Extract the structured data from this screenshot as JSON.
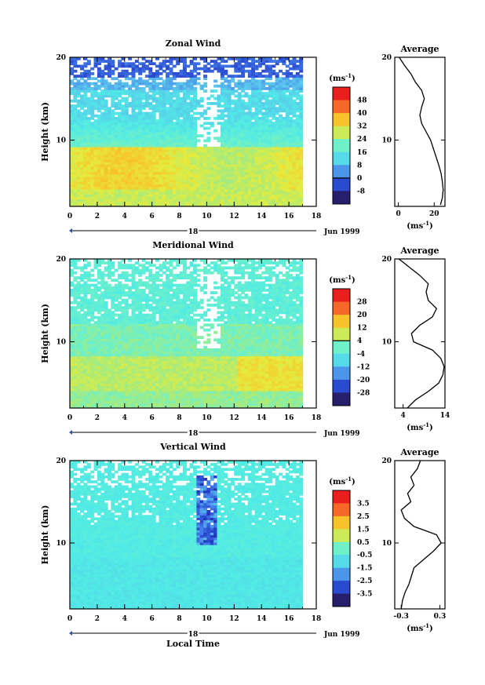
{
  "chart_data": [
    {
      "type": "heatmap",
      "title": "Zonal Wind",
      "ylabel": "Height (km)",
      "xticks": [
        0,
        2,
        4,
        6,
        8,
        10,
        12,
        14,
        16,
        18
      ],
      "yticks": [
        10,
        20
      ],
      "xlim": [
        0,
        18
      ],
      "ylim": [
        2,
        20
      ],
      "date_label": "18",
      "month_label": "Jun 1999",
      "colorbar": {
        "unit_label": "(ms",
        "unit_exp": "-1",
        "unit_close": ")",
        "ticks": [
          48,
          40,
          32,
          24,
          16,
          8,
          0,
          -8
        ],
        "range": [
          -8,
          52
        ],
        "zero_line": 0
      },
      "pattern": "zonal",
      "data_end_hour": 17,
      "average": {
        "title": "Average",
        "yticks": [
          10,
          20
        ],
        "xticks": [
          0,
          20
        ],
        "xlim": [
          -2,
          26
        ],
        "unit_label": "(ms",
        "unit_exp": "-1",
        "unit_close": ")",
        "profile": [
          [
            23.5,
            2.2
          ],
          [
            24.5,
            3
          ],
          [
            25,
            4
          ],
          [
            24.5,
            5
          ],
          [
            23.8,
            6
          ],
          [
            22.5,
            7
          ],
          [
            21,
            8
          ],
          [
            19.5,
            9
          ],
          [
            18,
            10
          ],
          [
            15.5,
            11
          ],
          [
            13,
            12
          ],
          [
            12,
            13
          ],
          [
            13,
            14
          ],
          [
            14.5,
            15
          ],
          [
            13,
            16
          ],
          [
            9.5,
            17
          ],
          [
            7,
            18
          ],
          [
            3.5,
            19
          ],
          [
            0.5,
            20
          ]
        ]
      }
    },
    {
      "type": "heatmap",
      "title": "Meridional Wind",
      "ylabel": "Height (km)",
      "xticks": [
        0,
        2,
        4,
        6,
        8,
        10,
        12,
        14,
        16,
        18
      ],
      "yticks": [
        10,
        20
      ],
      "xlim": [
        0,
        18
      ],
      "ylim": [
        2,
        20
      ],
      "date_label": "18",
      "month_label": "Jun 1999",
      "colorbar": {
        "unit_label": "(ms",
        "unit_exp": "-1",
        "unit_close": ")",
        "ticks": [
          28,
          20,
          12,
          4,
          -4,
          -12,
          -20,
          -28
        ],
        "range": [
          -28,
          32
        ],
        "zero_line": 4
      },
      "pattern": "meridional",
      "data_end_hour": 17,
      "average": {
        "title": "Average",
        "yticks": [
          10,
          20
        ],
        "xticks": [
          4,
          14
        ],
        "xlim": [
          2,
          14
        ],
        "unit_label": "(ms",
        "unit_exp": "-1",
        "unit_close": ")",
        "profile": [
          [
            5,
            2
          ],
          [
            7,
            3
          ],
          [
            10,
            4
          ],
          [
            12.5,
            5
          ],
          [
            13.5,
            6
          ],
          [
            13.8,
            7
          ],
          [
            13,
            8
          ],
          [
            11,
            9
          ],
          [
            6.5,
            10
          ],
          [
            6,
            11
          ],
          [
            8,
            12
          ],
          [
            11,
            13
          ],
          [
            12,
            14
          ],
          [
            10,
            15
          ],
          [
            9.5,
            16
          ],
          [
            10,
            17
          ],
          [
            8,
            18
          ],
          [
            5.5,
            19
          ],
          [
            3,
            20
          ]
        ]
      }
    },
    {
      "type": "heatmap",
      "title": "Vertical Wind",
      "ylabel": "Height (km)",
      "xticks": [
        0,
        2,
        4,
        6,
        8,
        10,
        12,
        14,
        16,
        18
      ],
      "yticks": [
        10,
        20
      ],
      "xlim": [
        0,
        18
      ],
      "ylim": [
        2,
        20
      ],
      "date_label": "18",
      "month_label": "Jun 1999",
      "xlabel": "Local Time",
      "colorbar": {
        "unit_label": "(ms",
        "unit_exp": "-1",
        "unit_close": ")",
        "ticks": [
          3.5,
          2.5,
          1.5,
          0.5,
          -0.5,
          -1.5,
          -2.5,
          -3.5
        ],
        "range": [
          -4,
          4
        ],
        "zero_line": null
      },
      "pattern": "vertical",
      "data_end_hour": 17,
      "average": {
        "title": "Average",
        "yticks": [
          10,
          20
        ],
        "xticks": [
          -0.3,
          0.3
        ],
        "xlim": [
          -0.4,
          0.38
        ],
        "unit_label": "(ms",
        "unit_exp": "-1",
        "unit_close": ")",
        "profile": [
          [
            -0.3,
            2
          ],
          [
            -0.28,
            3
          ],
          [
            -0.24,
            4
          ],
          [
            -0.18,
            5
          ],
          [
            -0.14,
            6
          ],
          [
            -0.1,
            7
          ],
          [
            0.05,
            8
          ],
          [
            0.2,
            9
          ],
          [
            0.32,
            10
          ],
          [
            0.25,
            11
          ],
          [
            -0.1,
            12
          ],
          [
            -0.25,
            13
          ],
          [
            -0.3,
            14
          ],
          [
            -0.15,
            15
          ],
          [
            -0.2,
            16
          ],
          [
            -0.1,
            17
          ],
          [
            -0.15,
            18
          ],
          [
            -0.05,
            19
          ],
          [
            0,
            20
          ]
        ]
      }
    }
  ]
}
